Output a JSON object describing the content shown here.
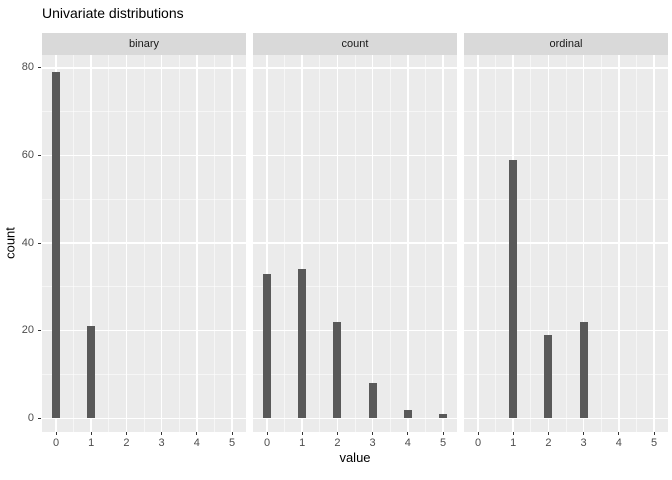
{
  "chart_data": {
    "type": "bar",
    "title": "Univariate distributions",
    "xlabel": "value",
    "ylabel": "count",
    "x_ticks": [
      0,
      1,
      2,
      3,
      4,
      5
    ],
    "x_minor": [
      0.5,
      1.5,
      2.5,
      3.5,
      4.5
    ],
    "y_ticks": [
      0,
      20,
      40,
      60,
      80
    ],
    "y_minor": [
      10,
      30,
      50,
      70
    ],
    "ylim": [
      0,
      83
    ],
    "xlim": [
      -0.4,
      5.4
    ],
    "grid": true,
    "legend": false,
    "facets": [
      {
        "label": "binary",
        "x": [
          0,
          1
        ],
        "counts": [
          79,
          21
        ]
      },
      {
        "label": "count",
        "x": [
          0,
          1,
          2,
          3,
          4,
          5
        ],
        "counts": [
          33,
          34,
          22,
          8,
          2,
          1
        ]
      },
      {
        "label": "ordinal",
        "x": [
          1,
          2,
          3
        ],
        "counts": [
          59,
          19,
          22
        ]
      }
    ],
    "colors": {
      "bar": "#595959",
      "panel_bg": "#EBEBEB",
      "strip_bg": "#D9D9D9",
      "grid_major": "#FFFFFF",
      "grid_minor": "rgba(255,255,255,0.55)",
      "axis_text": "#4D4D4D",
      "tick_mark": "#333333",
      "strip_text": "#1A1A1A",
      "title_text": "#000000"
    }
  }
}
